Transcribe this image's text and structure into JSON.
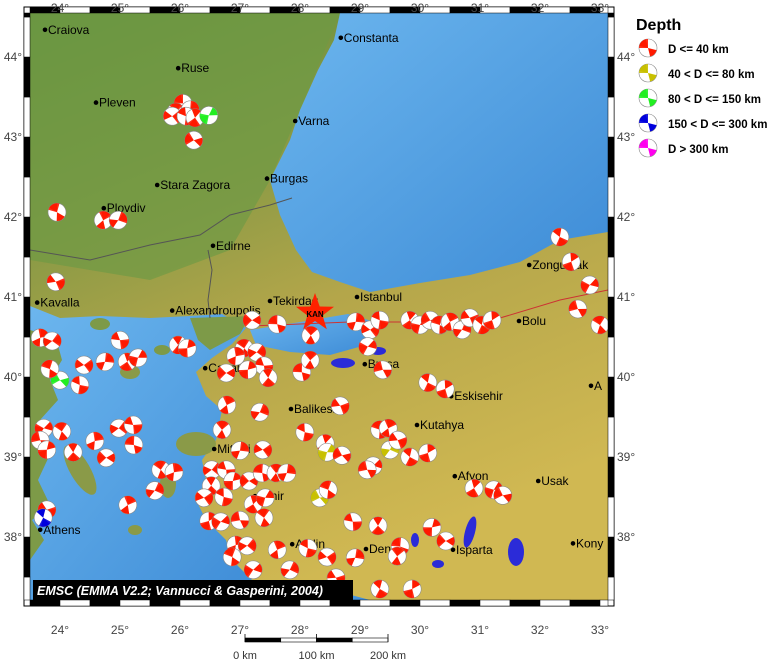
{
  "map": {
    "lon_range": [
      23.0,
      33.13
    ],
    "lat_range": [
      37.2,
      44.55
    ],
    "lon_ticks": [
      24,
      25,
      26,
      27,
      28,
      29,
      30,
      31,
      32,
      33
    ],
    "lat_ticks": [
      44,
      43,
      42,
      41,
      40,
      39,
      38
    ],
    "degree_symbol": "°",
    "colors": {
      "sea": "#4f9fe0",
      "sea_deep": "#3b86d2",
      "lowland": "#5e8c3a",
      "plateau": "#c9b44e",
      "lake": "#2b2bd8",
      "frame": "#000000"
    },
    "attribution": "EMSC (EMMA V2.2; Vannucci & Gasperini, 2004)"
  },
  "station": {
    "code": "KAN",
    "lon": 28.25,
    "lat": 40.8,
    "color": "#ff2200",
    "icon": "star-icon"
  },
  "cities": [
    {
      "name": "Craiova",
      "lon": 23.75,
      "lat": 44.34
    },
    {
      "name": "Constanta",
      "lon": 28.68,
      "lat": 44.24
    },
    {
      "name": "Ruse",
      "lon": 25.97,
      "lat": 43.86
    },
    {
      "name": "Pleven",
      "lon": 24.6,
      "lat": 43.43
    },
    {
      "name": "Varna",
      "lon": 27.92,
      "lat": 43.2
    },
    {
      "name": "Stara Zagora",
      "lon": 25.62,
      "lat": 42.4
    },
    {
      "name": "Burgas",
      "lon": 27.45,
      "lat": 42.48
    },
    {
      "name": "Plovdiv",
      "lon": 24.73,
      "lat": 42.11
    },
    {
      "name": "Edirne",
      "lon": 26.55,
      "lat": 41.64
    },
    {
      "name": "Kavalla",
      "lon": 23.62,
      "lat": 40.93
    },
    {
      "name": "Alexandroupolis",
      "lon": 25.87,
      "lat": 40.83
    },
    {
      "name": "Tekirdag",
      "lon": 27.5,
      "lat": 40.95
    },
    {
      "name": "Istanbul",
      "lon": 28.95,
      "lat": 41.0
    },
    {
      "name": "Zonguldak",
      "lon": 31.82,
      "lat": 41.4
    },
    {
      "name": "Bolu",
      "lon": 31.65,
      "lat": 40.7
    },
    {
      "name": "Canakkale",
      "lon": 26.42,
      "lat": 40.11
    },
    {
      "name": "Bursa",
      "lon": 29.08,
      "lat": 40.16
    },
    {
      "name": "Balikesir",
      "lon": 27.85,
      "lat": 39.6
    },
    {
      "name": "Eskisehir",
      "lon": 30.52,
      "lat": 39.76
    },
    {
      "name": "Kutahya",
      "lon": 29.95,
      "lat": 39.4
    },
    {
      "name": "Mitilini",
      "lon": 26.57,
      "lat": 39.1
    },
    {
      "name": "Afyon",
      "lon": 30.58,
      "lat": 38.76
    },
    {
      "name": "Usak",
      "lon": 31.97,
      "lat": 38.7
    },
    {
      "name": "Izmir",
      "lon": 27.25,
      "lat": 38.51
    },
    {
      "name": "Aydin",
      "lon": 27.87,
      "lat": 37.91
    },
    {
      "name": "Denizli",
      "lon": 29.1,
      "lat": 37.85
    },
    {
      "name": "Isparta",
      "lon": 30.55,
      "lat": 37.84
    },
    {
      "name": "Athens",
      "lon": 23.67,
      "lat": 38.09
    },
    {
      "name": "Kony",
      "lon": 32.55,
      "lat": 37.92
    },
    {
      "name": "A",
      "lon": 32.85,
      "lat": 39.89
    }
  ],
  "legend": {
    "title": "Depth",
    "entries": [
      {
        "label": "D <= 40 km",
        "color": "#ff1a00"
      },
      {
        "label": "40 < D <= 80 km",
        "color": "#c8c000"
      },
      {
        "label": "80 < D <= 150 km",
        "color": "#22ee22"
      },
      {
        "label": "150 < D <= 300 km",
        "color": "#0000dd"
      },
      {
        "label": "D > 300 km",
        "color": "#ff00ee"
      }
    ]
  },
  "scale_bar": {
    "labels": [
      "0 km",
      "100 km",
      "200 km"
    ],
    "max_km": 200
  },
  "events": [
    [
      26.05,
      43.42,
      0
    ],
    [
      25.93,
      43.31,
      0
    ],
    [
      26.17,
      43.34,
      0
    ],
    [
      25.87,
      43.26,
      0
    ],
    [
      26.1,
      43.26,
      0
    ],
    [
      26.25,
      43.24,
      0
    ],
    [
      26.48,
      43.27,
      2
    ],
    [
      26.23,
      42.96,
      0
    ],
    [
      23.95,
      42.06,
      0
    ],
    [
      24.72,
      41.96,
      0
    ],
    [
      24.97,
      41.96,
      0
    ],
    [
      23.93,
      41.19,
      0
    ],
    [
      32.33,
      41.75,
      0
    ],
    [
      32.52,
      41.44,
      0
    ],
    [
      32.83,
      41.15,
      0
    ],
    [
      32.63,
      40.85,
      0
    ],
    [
      33.0,
      40.65,
      0
    ],
    [
      23.67,
      40.49,
      0
    ],
    [
      23.87,
      40.45,
      0
    ],
    [
      25.0,
      40.46,
      0
    ],
    [
      25.97,
      40.4,
      0
    ],
    [
      26.12,
      40.36,
      0
    ],
    [
      27.2,
      40.71,
      0
    ],
    [
      27.62,
      40.66,
      0
    ],
    [
      28.18,
      40.52,
      0
    ],
    [
      28.93,
      40.69,
      0
    ],
    [
      29.17,
      40.59,
      0
    ],
    [
      29.33,
      40.71,
      0
    ],
    [
      29.83,
      40.71,
      0
    ],
    [
      30.0,
      40.65,
      0
    ],
    [
      30.17,
      40.71,
      0
    ],
    [
      30.33,
      40.65,
      0
    ],
    [
      30.5,
      40.69,
      0
    ],
    [
      30.7,
      40.59,
      0
    ],
    [
      30.83,
      40.74,
      0
    ],
    [
      31.03,
      40.65,
      0
    ],
    [
      31.2,
      40.71,
      0
    ],
    [
      29.13,
      40.38,
      0
    ],
    [
      29.38,
      40.09,
      0
    ],
    [
      27.07,
      40.36,
      0
    ],
    [
      26.93,
      40.26,
      0
    ],
    [
      27.28,
      40.31,
      0
    ],
    [
      27.4,
      40.14,
      0
    ],
    [
      27.47,
      39.99,
      0
    ],
    [
      27.13,
      40.09,
      0
    ],
    [
      26.77,
      40.05,
      0
    ],
    [
      28.03,
      40.06,
      0
    ],
    [
      28.17,
      40.21,
      0
    ],
    [
      24.75,
      40.19,
      0
    ],
    [
      24.4,
      40.15,
      0
    ],
    [
      24.33,
      39.9,
      0
    ],
    [
      25.12,
      40.19,
      0
    ],
    [
      25.3,
      40.24,
      0
    ],
    [
      24.0,
      39.96,
      2
    ],
    [
      23.83,
      40.1,
      0
    ],
    [
      26.78,
      39.65,
      0
    ],
    [
      27.33,
      39.56,
      0
    ],
    [
      28.67,
      39.64,
      0
    ],
    [
      30.13,
      39.93,
      0
    ],
    [
      30.42,
      39.85,
      0
    ],
    [
      23.73,
      39.36,
      0
    ],
    [
      23.67,
      39.21,
      0
    ],
    [
      24.03,
      39.32,
      0
    ],
    [
      24.58,
      39.2,
      0
    ],
    [
      24.98,
      39.36,
      0
    ],
    [
      25.22,
      39.4,
      0
    ],
    [
      24.22,
      39.06,
      0
    ],
    [
      23.78,
      39.09,
      0
    ],
    [
      24.77,
      38.99,
      0
    ],
    [
      25.23,
      39.15,
      0
    ],
    [
      26.7,
      39.34,
      0
    ],
    [
      27.0,
      39.08,
      0
    ],
    [
      27.38,
      39.09,
      0
    ],
    [
      28.08,
      39.31,
      0
    ],
    [
      28.42,
      39.17,
      0
    ],
    [
      28.45,
      39.06,
      1
    ],
    [
      28.7,
      39.02,
      0
    ],
    [
      29.33,
      39.34,
      0
    ],
    [
      29.47,
      39.36,
      0
    ],
    [
      29.5,
      39.09,
      1
    ],
    [
      29.63,
      39.21,
      0
    ],
    [
      29.83,
      39.0,
      0
    ],
    [
      30.13,
      39.05,
      0
    ],
    [
      29.22,
      38.89,
      0
    ],
    [
      29.12,
      38.84,
      0
    ],
    [
      25.68,
      38.84,
      0
    ],
    [
      25.9,
      38.81,
      0
    ],
    [
      26.53,
      38.84,
      0
    ],
    [
      26.77,
      38.84,
      0
    ],
    [
      26.52,
      38.64,
      0
    ],
    [
      26.88,
      38.7,
      0
    ],
    [
      27.15,
      38.7,
      0
    ],
    [
      27.37,
      38.8,
      0
    ],
    [
      27.6,
      38.8,
      0
    ],
    [
      27.78,
      38.8,
      0
    ],
    [
      26.4,
      38.49,
      0
    ],
    [
      26.73,
      38.5,
      0
    ],
    [
      27.22,
      38.41,
      0
    ],
    [
      27.42,
      38.49,
      0
    ],
    [
      28.33,
      38.49,
      1
    ],
    [
      28.47,
      38.59,
      0
    ],
    [
      25.13,
      38.4,
      0
    ],
    [
      25.58,
      38.58,
      0
    ],
    [
      23.78,
      38.34,
      0
    ],
    [
      23.72,
      38.24,
      3
    ],
    [
      26.48,
      38.2,
      0
    ],
    [
      26.68,
      38.19,
      0
    ],
    [
      27.0,
      38.21,
      0
    ],
    [
      27.4,
      38.24,
      0
    ],
    [
      26.93,
      37.9,
      0
    ],
    [
      27.12,
      37.89,
      0
    ],
    [
      28.88,
      38.19,
      0
    ],
    [
      29.3,
      38.14,
      0
    ],
    [
      30.2,
      38.12,
      0
    ],
    [
      30.43,
      37.95,
      0
    ],
    [
      29.67,
      37.88,
      0
    ],
    [
      29.62,
      37.76,
      0
    ],
    [
      28.92,
      37.74,
      0
    ],
    [
      28.45,
      37.75,
      0
    ],
    [
      28.13,
      37.86,
      0
    ],
    [
      30.9,
      38.61,
      0
    ],
    [
      31.23,
      38.59,
      0
    ],
    [
      31.38,
      38.52,
      0
    ],
    [
      26.87,
      37.75,
      0
    ],
    [
      27.62,
      37.84,
      0
    ],
    [
      27.83,
      37.59,
      0
    ],
    [
      28.6,
      37.49,
      0
    ],
    [
      29.33,
      37.35,
      0
    ],
    [
      29.87,
      37.35,
      0
    ],
    [
      27.22,
      37.59,
      0
    ]
  ]
}
